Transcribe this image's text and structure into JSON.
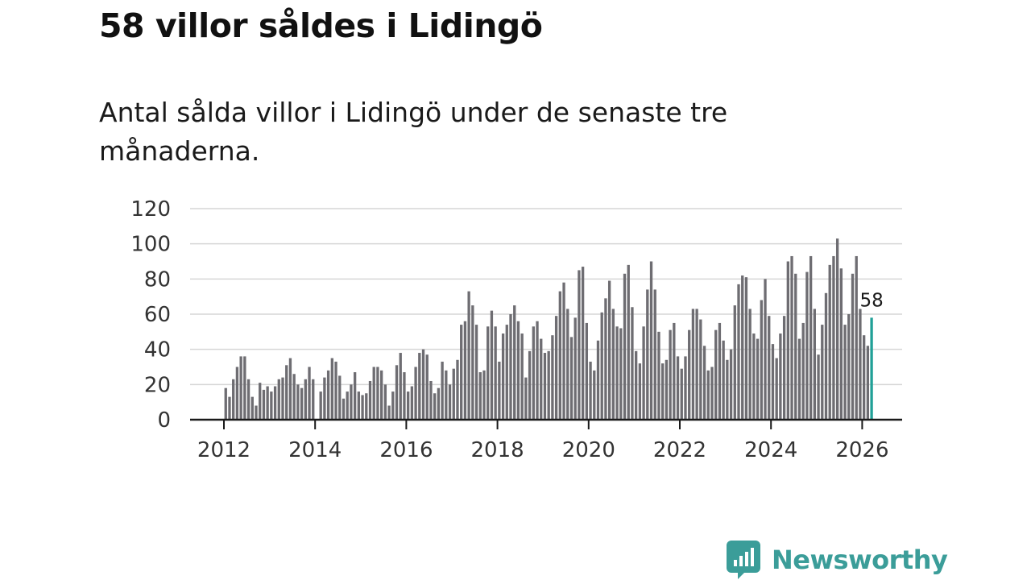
{
  "title": "58 villor såldes i Lidingö",
  "subtitle": "Antal sålda villor i Lidingö under de senaste tre månaderna.",
  "brand": {
    "name": "Newsworthy",
    "icon": "newsworthy-logo-icon",
    "color": "#3b9d99"
  },
  "chart_data": {
    "type": "bar",
    "title": "58 villor såldes i Lidingö",
    "xlabel": "",
    "ylabel": "",
    "ylim": [
      0,
      120
    ],
    "yticks": [
      0,
      20,
      40,
      60,
      80,
      100,
      120
    ],
    "xticks": [
      "2012",
      "2014",
      "2016",
      "2018",
      "2020",
      "2022",
      "2024",
      "2026"
    ],
    "x_start": "2012-01",
    "bar_color": "#6e6d72",
    "highlight_color": "#21a097",
    "highlight_label": "58",
    "series": [
      {
        "name": "Antal sålda villor",
        "values": [
          18,
          13,
          23,
          30,
          36,
          36,
          23,
          13,
          8,
          21,
          17,
          19,
          16,
          19,
          23,
          24,
          31,
          35,
          26,
          20,
          18,
          23,
          30,
          23,
          null,
          16,
          24,
          28,
          35,
          33,
          25,
          12,
          16,
          20,
          27,
          16,
          14,
          15,
          22,
          30,
          30,
          28,
          20,
          8,
          16,
          31,
          38,
          27,
          16,
          19,
          30,
          38,
          40,
          37,
          22,
          15,
          18,
          33,
          28,
          20,
          29,
          34,
          54,
          56,
          73,
          65,
          54,
          27,
          28,
          53,
          62,
          53,
          33,
          49,
          54,
          60,
          65,
          56,
          49,
          24,
          39,
          53,
          56,
          46,
          38,
          39,
          48,
          59,
          73,
          78,
          63,
          47,
          58,
          85,
          87,
          55,
          33,
          28,
          45,
          61,
          69,
          79,
          63,
          53,
          52,
          83,
          88,
          64,
          39,
          32,
          53,
          74,
          90,
          74,
          50,
          32,
          34,
          51,
          55,
          36,
          29,
          36,
          51,
          63,
          63,
          57,
          42,
          28,
          30,
          51,
          55,
          45,
          34,
          40,
          65,
          77,
          82,
          81,
          63,
          49,
          46,
          68,
          80,
          59,
          43,
          35,
          49,
          59,
          90,
          93,
          83,
          46,
          55,
          84,
          93,
          63,
          37,
          54,
          72,
          88,
          93,
          103,
          86,
          54,
          60,
          83,
          93,
          63,
          48,
          42,
          58
        ]
      }
    ]
  }
}
